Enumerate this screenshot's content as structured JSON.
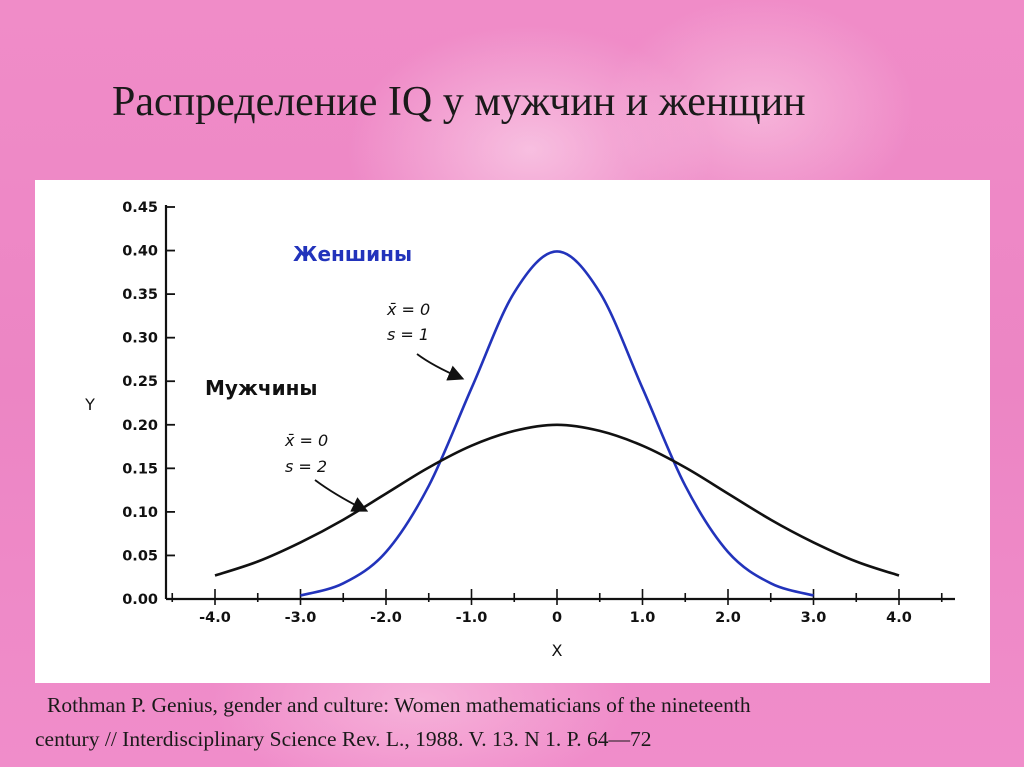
{
  "slide": {
    "title": "Распределение IQ у мужчин и женщин",
    "citation_line1": "Rothman P. Genius, gender and culture: Women mathematicians of the nineteenth",
    "citation_line2": "century // Interdisciplinary Science Rev. L., 1988. V. 13. N 1. P. 64—72"
  },
  "chart_data": {
    "type": "line",
    "xlabel": "X",
    "ylabel": "Y",
    "xlim": [
      -4.5,
      4.5
    ],
    "ylim": [
      0,
      0.45
    ],
    "x_ticks": [
      "-4.0",
      "-3.0",
      "-2.0",
      "-1.0",
      "0",
      "1.0",
      "2.0",
      "3.0",
      "4.0"
    ],
    "y_ticks": [
      "0.00",
      "0.05",
      "0.10",
      "0.15",
      "0.20",
      "0.25",
      "0.30",
      "0.35",
      "0.40",
      "0.45"
    ],
    "grid": false,
    "series": [
      {
        "name": "Женшины",
        "color": "#2233bb",
        "mean_label": "x̄ = 0",
        "sd_label": "s = 1",
        "x": [
          -3.0,
          -2.5,
          -2.0,
          -1.5,
          -1.0,
          -0.5,
          0.0,
          0.5,
          1.0,
          1.5,
          2.0,
          2.5,
          3.0
        ],
        "y": [
          0.004,
          0.018,
          0.054,
          0.13,
          0.242,
          0.352,
          0.399,
          0.352,
          0.242,
          0.13,
          0.054,
          0.018,
          0.004
        ]
      },
      {
        "name": "Мужчины",
        "color": "#111111",
        "mean_label": "x̄ = 0",
        "sd_label": "s = 2",
        "x": [
          -4.0,
          -3.5,
          -3.0,
          -2.5,
          -2.0,
          -1.5,
          -1.0,
          -0.5,
          0.0,
          0.5,
          1.0,
          1.5,
          2.0,
          2.5,
          3.0,
          3.5,
          4.0
        ],
        "y": [
          0.027,
          0.043,
          0.065,
          0.091,
          0.121,
          0.151,
          0.176,
          0.193,
          0.2,
          0.193,
          0.176,
          0.151,
          0.121,
          0.091,
          0.065,
          0.043,
          0.027
        ]
      }
    ]
  }
}
